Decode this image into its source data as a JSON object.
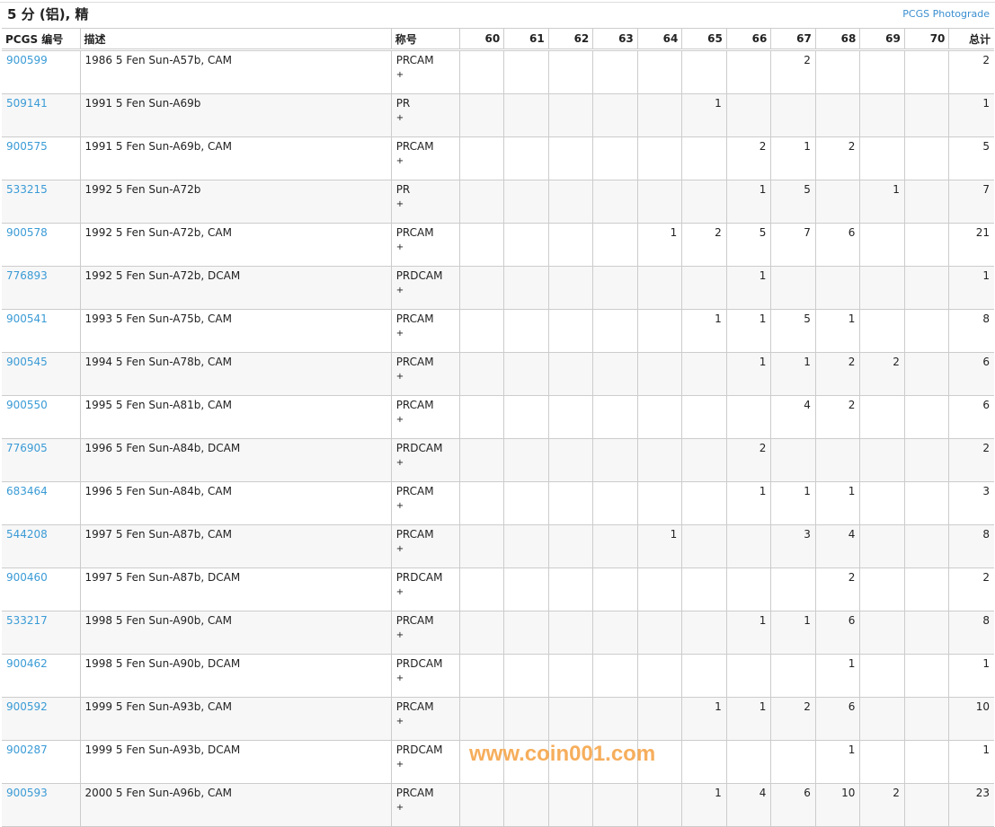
{
  "title": "5 分 (铝), 精",
  "photograde_link": "PCGS Photograde",
  "headers": {
    "pcgs": "PCGS 编号",
    "desc": "描述",
    "designation": "称号",
    "grades": [
      "60",
      "61",
      "62",
      "63",
      "64",
      "65",
      "66",
      "67",
      "68",
      "69",
      "70"
    ],
    "total": "总计"
  },
  "rows": [
    {
      "id": "900599",
      "desc": "1986 5 Fen Sun-A57b, CAM",
      "des": "PRCAM",
      "plus": "+",
      "g": [
        "",
        "",
        "",
        "",
        "",
        "",
        "",
        "2",
        "",
        "",
        ""
      ],
      "total": "2"
    },
    {
      "id": "509141",
      "desc": "1991 5 Fen Sun-A69b",
      "des": "PR",
      "plus": "+",
      "g": [
        "",
        "",
        "",
        "",
        "",
        "1",
        "",
        "",
        "",
        "",
        ""
      ],
      "total": "1"
    },
    {
      "id": "900575",
      "desc": "1991 5 Fen Sun-A69b, CAM",
      "des": "PRCAM",
      "plus": "+",
      "g": [
        "",
        "",
        "",
        "",
        "",
        "",
        "2",
        "1",
        "2",
        "",
        ""
      ],
      "total": "5"
    },
    {
      "id": "533215",
      "desc": "1992 5 Fen Sun-A72b",
      "des": "PR",
      "plus": "+",
      "g": [
        "",
        "",
        "",
        "",
        "",
        "",
        "1",
        "5",
        "",
        "1",
        ""
      ],
      "total": "7"
    },
    {
      "id": "900578",
      "desc": "1992 5 Fen Sun-A72b, CAM",
      "des": "PRCAM",
      "plus": "+",
      "g": [
        "",
        "",
        "",
        "",
        "1",
        "2",
        "5",
        "7",
        "6",
        "",
        ""
      ],
      "total": "21"
    },
    {
      "id": "776893",
      "desc": "1992 5 Fen Sun-A72b, DCAM",
      "des": "PRDCAM",
      "plus": "+",
      "g": [
        "",
        "",
        "",
        "",
        "",
        "",
        "1",
        "",
        "",
        "",
        ""
      ],
      "total": "1"
    },
    {
      "id": "900541",
      "desc": "1993 5 Fen Sun-A75b, CAM",
      "des": "PRCAM",
      "plus": "+",
      "g": [
        "",
        "",
        "",
        "",
        "",
        "1",
        "1",
        "5",
        "1",
        "",
        ""
      ],
      "total": "8"
    },
    {
      "id": "900545",
      "desc": "1994 5 Fen Sun-A78b, CAM",
      "des": "PRCAM",
      "plus": "+",
      "g": [
        "",
        "",
        "",
        "",
        "",
        "",
        "1",
        "1",
        "2",
        "2",
        ""
      ],
      "total": "6"
    },
    {
      "id": "900550",
      "desc": "1995 5 Fen Sun-A81b, CAM",
      "des": "PRCAM",
      "plus": "+",
      "g": [
        "",
        "",
        "",
        "",
        "",
        "",
        "",
        "4",
        "2",
        "",
        ""
      ],
      "total": "6"
    },
    {
      "id": "776905",
      "desc": "1996 5 Fen Sun-A84b, DCAM",
      "des": "PRDCAM",
      "plus": "+",
      "g": [
        "",
        "",
        "",
        "",
        "",
        "",
        "2",
        "",
        "",
        "",
        ""
      ],
      "total": "2"
    },
    {
      "id": "683464",
      "desc": "1996 5 Fen Sun-A84b, CAM",
      "des": "PRCAM",
      "plus": "+",
      "g": [
        "",
        "",
        "",
        "",
        "",
        "",
        "1",
        "1",
        "1",
        "",
        ""
      ],
      "total": "3"
    },
    {
      "id": "544208",
      "desc": "1997 5 Fen Sun-A87b, CAM",
      "des": "PRCAM",
      "plus": "+",
      "g": [
        "",
        "",
        "",
        "",
        "1",
        "",
        "",
        "3",
        "4",
        "",
        ""
      ],
      "total": "8"
    },
    {
      "id": "900460",
      "desc": "1997 5 Fen Sun-A87b, DCAM",
      "des": "PRDCAM",
      "plus": "+",
      "g": [
        "",
        "",
        "",
        "",
        "",
        "",
        "",
        "",
        "2",
        "",
        ""
      ],
      "total": "2"
    },
    {
      "id": "533217",
      "desc": "1998 5 Fen Sun-A90b, CAM",
      "des": "PRCAM",
      "plus": "+",
      "g": [
        "",
        "",
        "",
        "",
        "",
        "",
        "1",
        "1",
        "6",
        "",
        ""
      ],
      "total": "8"
    },
    {
      "id": "900462",
      "desc": "1998 5 Fen Sun-A90b, DCAM",
      "des": "PRDCAM",
      "plus": "+",
      "g": [
        "",
        "",
        "",
        "",
        "",
        "",
        "",
        "",
        "1",
        "",
        ""
      ],
      "total": "1"
    },
    {
      "id": "900592",
      "desc": "1999 5 Fen Sun-A93b, CAM",
      "des": "PRCAM",
      "plus": "+",
      "g": [
        "",
        "",
        "",
        "",
        "",
        "1",
        "1",
        "2",
        "6",
        "",
        ""
      ],
      "total": "10"
    },
    {
      "id": "900287",
      "desc": "1999 5 Fen Sun-A93b, DCAM",
      "des": "PRDCAM",
      "plus": "+",
      "g": [
        "",
        "",
        "",
        "",
        "",
        "",
        "",
        "",
        "1",
        "",
        ""
      ],
      "total": "1"
    },
    {
      "id": "900593",
      "desc": "2000 5 Fen Sun-A96b, CAM",
      "des": "PRCAM",
      "plus": "+",
      "g": [
        "",
        "",
        "",
        "",
        "",
        "1",
        "4",
        "6",
        "10",
        "2",
        ""
      ],
      "total": "23"
    }
  ],
  "watermark": "www.coin001.com",
  "colors": {
    "link": "#3a9bd6",
    "watermark": "#f5a040",
    "alt_row": "#f7f7f7"
  }
}
